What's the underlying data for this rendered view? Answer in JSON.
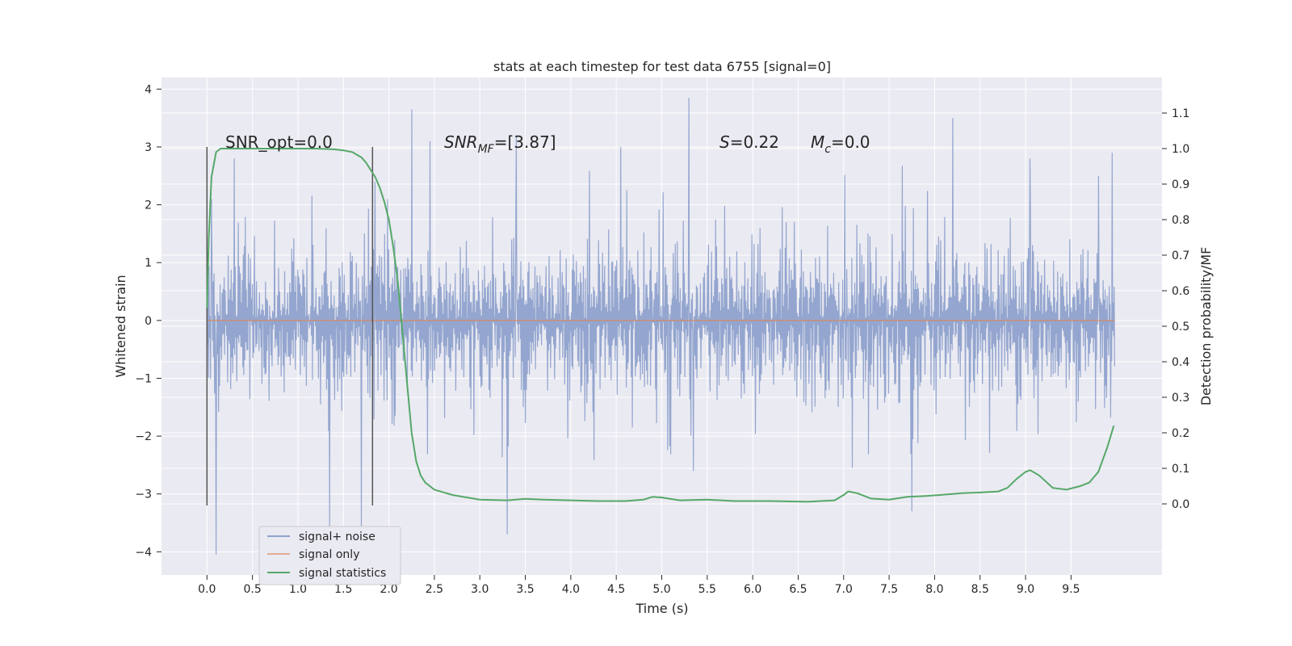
{
  "chart_data": {
    "type": "line",
    "title": "stats at each timestep for test data 6755 [signal=0]",
    "xlabel": "Time (s)",
    "ylabel": "Whitened strain",
    "ylabel_right": "Detection probability/MF",
    "xlim": [
      -0.5,
      10.5
    ],
    "ylim": [
      -4.4,
      4.2
    ],
    "ylim_right": [
      -0.2,
      1.2
    ],
    "x_ticks": [
      "0.0",
      "0.5",
      "1.0",
      "1.5",
      "2.0",
      "2.5",
      "3.0",
      "3.5",
      "4.0",
      "4.5",
      "5.0",
      "5.5",
      "6.0",
      "6.5",
      "7.0",
      "7.5",
      "8.0",
      "8.5",
      "9.0",
      "9.5"
    ],
    "y_ticks": [
      "4",
      "3",
      "2",
      "1",
      "0",
      "−1",
      "−2",
      "−3",
      "−4"
    ],
    "y_ticks_right": [
      "1.1",
      "1.0",
      "0.9",
      "0.8",
      "0.7",
      "0.6",
      "0.5",
      "0.4",
      "0.3",
      "0.2",
      "0.1",
      "0.0"
    ],
    "grid": true,
    "legend_position": "lower-left",
    "annotations": {
      "snr_opt": "SNR_opt=0.0",
      "snr_mf_main": "SNR",
      "snr_mf_sub": "MF",
      "snr_mf_value": "=[3.87]",
      "s_main": "S",
      "s_value": "=0.22",
      "mc_main": "M",
      "mc_sub": "c",
      "mc_value": "=0.0"
    },
    "window_markers_x": [
      0.0,
      1.82
    ],
    "window_markers_ylim": [
      -3.2,
      3.0
    ],
    "series": [
      {
        "name": "signal+ noise",
        "color": "#8fa2cc",
        "x_range": [
          0.0,
          9.98
        ],
        "envelope_core": 1.3,
        "peaks": [
          [
            0.1,
            -4.05
          ],
          [
            0.05,
            2.1
          ],
          [
            0.3,
            2.8
          ],
          [
            1.35,
            -3.6
          ],
          [
            1.7,
            -3.6
          ],
          [
            1.85,
            2.4
          ],
          [
            2.25,
            3.65
          ],
          [
            2.45,
            3.1
          ],
          [
            3.3,
            -3.7
          ],
          [
            3.4,
            3.2
          ],
          [
            4.55,
            3.0
          ],
          [
            5.3,
            3.85
          ],
          [
            5.35,
            -2.6
          ],
          [
            7.75,
            -3.3
          ],
          [
            8.2,
            3.5
          ],
          [
            9.05,
            2.8
          ],
          [
            9.8,
            2.5
          ],
          [
            9.95,
            2.9
          ]
        ]
      },
      {
        "name": "signal only",
        "color": "#dd8452",
        "x": [
          0.0,
          9.98
        ],
        "y": [
          0.0,
          0.0
        ]
      },
      {
        "name": "signal statistics",
        "color": "#55a868",
        "axis": "right",
        "x": [
          0.0,
          0.02,
          0.05,
          0.1,
          0.15,
          0.2,
          0.3,
          0.5,
          0.8,
          1.0,
          1.2,
          1.4,
          1.5,
          1.6,
          1.7,
          1.75,
          1.8,
          1.85,
          1.9,
          1.95,
          2.0,
          2.05,
          2.1,
          2.15,
          2.2,
          2.25,
          2.3,
          2.35,
          2.4,
          2.5,
          2.7,
          3.0,
          3.3,
          3.5,
          3.7,
          4.0,
          4.3,
          4.6,
          4.8,
          4.9,
          5.0,
          5.2,
          5.5,
          5.8,
          6.2,
          6.6,
          6.9,
          7.0,
          7.05,
          7.15,
          7.3,
          7.5,
          7.7,
          7.9,
          8.1,
          8.3,
          8.5,
          8.7,
          8.8,
          8.9,
          9.0,
          9.05,
          9.15,
          9.3,
          9.45,
          9.6,
          9.7,
          9.8,
          9.9,
          9.97
        ],
        "y": [
          0.55,
          0.75,
          0.92,
          0.99,
          1.0,
          1.0,
          1.0,
          1.0,
          1.0,
          1.0,
          1.0,
          0.998,
          0.995,
          0.99,
          0.975,
          0.96,
          0.94,
          0.92,
          0.89,
          0.85,
          0.8,
          0.72,
          0.62,
          0.48,
          0.34,
          0.2,
          0.12,
          0.08,
          0.06,
          0.04,
          0.025,
          0.012,
          0.01,
          0.014,
          0.012,
          0.01,
          0.008,
          0.008,
          0.012,
          0.02,
          0.018,
          0.01,
          0.012,
          0.008,
          0.008,
          0.006,
          0.01,
          0.025,
          0.035,
          0.03,
          0.015,
          0.012,
          0.02,
          0.022,
          0.026,
          0.03,
          0.032,
          0.035,
          0.045,
          0.07,
          0.09,
          0.095,
          0.08,
          0.045,
          0.04,
          0.05,
          0.06,
          0.09,
          0.16,
          0.22
        ]
      }
    ]
  }
}
